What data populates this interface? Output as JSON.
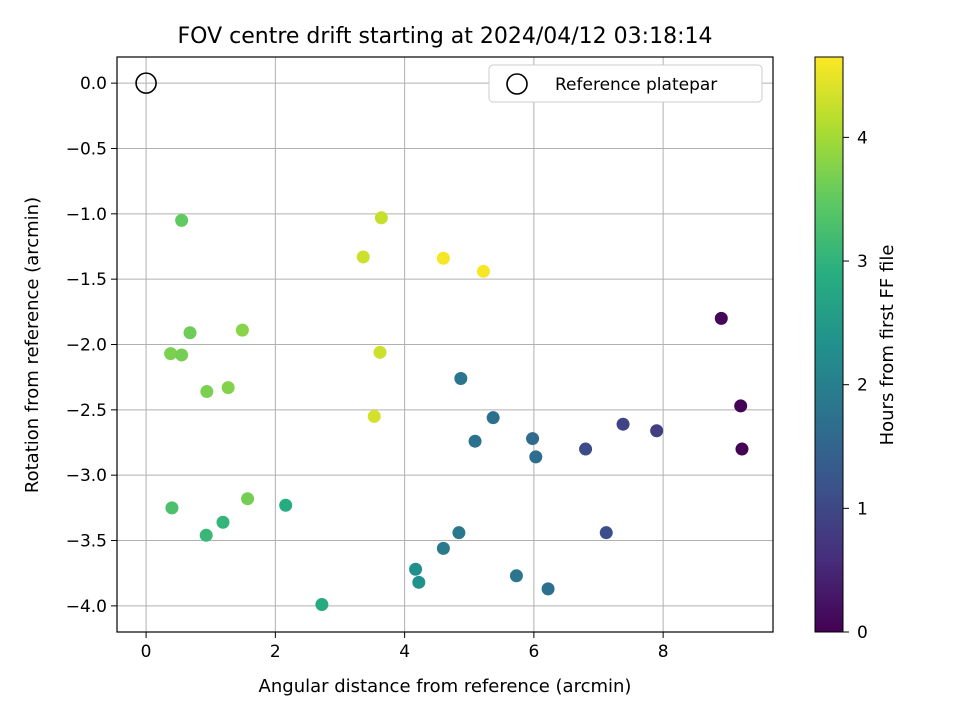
{
  "chart_data": {
    "type": "scatter",
    "title": "FOV centre drift starting at 2024/04/12 03:18:14",
    "xlabel": "Angular distance from reference (arcmin)",
    "ylabel": "Rotation from reference (arcmin)",
    "xlim": [
      -0.45,
      9.7
    ],
    "ylim": [
      -4.2,
      0.2
    ],
    "x_ticks": [
      0,
      2,
      4,
      6,
      8
    ],
    "y_ticks": [
      0.0,
      -0.5,
      -1.0,
      -1.5,
      -2.0,
      -2.5,
      -3.0,
      -3.5,
      -4.0
    ],
    "grid": true,
    "legend": {
      "position": "top-right",
      "entries": [
        "Reference platepar"
      ]
    },
    "reference_point": {
      "x": 0,
      "y": 0
    },
    "colorbar": {
      "label": "Hours from first FF file",
      "colormap": "viridis",
      "range": [
        0,
        4.65
      ],
      "ticks": [
        0,
        1,
        2,
        3,
        4
      ]
    },
    "points": [
      {
        "x": 8.9,
        "y": -1.8,
        "hours": 0.08
      },
      {
        "x": 9.2,
        "y": -2.47,
        "hours": 0.03
      },
      {
        "x": 9.22,
        "y": -2.8,
        "hours": 0.02
      },
      {
        "x": 7.9,
        "y": -2.66,
        "hours": 0.85
      },
      {
        "x": 7.38,
        "y": -2.61,
        "hours": 0.95
      },
      {
        "x": 6.8,
        "y": -2.8,
        "hours": 1.05
      },
      {
        "x": 7.12,
        "y": -3.44,
        "hours": 1.1
      },
      {
        "x": 5.98,
        "y": -2.72,
        "hours": 1.6
      },
      {
        "x": 6.03,
        "y": -2.86,
        "hours": 1.65
      },
      {
        "x": 5.37,
        "y": -2.56,
        "hours": 1.7
      },
      {
        "x": 5.09,
        "y": -2.74,
        "hours": 1.75
      },
      {
        "x": 4.87,
        "y": -2.26,
        "hours": 1.8
      },
      {
        "x": 6.22,
        "y": -3.87,
        "hours": 1.7
      },
      {
        "x": 5.73,
        "y": -3.77,
        "hours": 1.8
      },
      {
        "x": 4.84,
        "y": -3.44,
        "hours": 1.85
      },
      {
        "x": 4.6,
        "y": -3.56,
        "hours": 1.9
      },
      {
        "x": 4.17,
        "y": -3.72,
        "hours": 2.3
      },
      {
        "x": 4.22,
        "y": -3.82,
        "hours": 2.35
      },
      {
        "x": 2.72,
        "y": -3.99,
        "hours": 2.8
      },
      {
        "x": 2.16,
        "y": -3.23,
        "hours": 2.85
      },
      {
        "x": 1.19,
        "y": -3.36,
        "hours": 3.05
      },
      {
        "x": 0.93,
        "y": -3.46,
        "hours": 3.1
      },
      {
        "x": 0.4,
        "y": -3.25,
        "hours": 3.3
      },
      {
        "x": 1.57,
        "y": -3.18,
        "hours": 3.65
      },
      {
        "x": 0.94,
        "y": -2.36,
        "hours": 3.7
      },
      {
        "x": 1.27,
        "y": -2.33,
        "hours": 3.75
      },
      {
        "x": 0.68,
        "y": -1.91,
        "hours": 3.6
      },
      {
        "x": 0.55,
        "y": -1.05,
        "hours": 3.5
      },
      {
        "x": 0.38,
        "y": -2.07,
        "hours": 3.7
      },
      {
        "x": 0.55,
        "y": -2.08,
        "hours": 3.65
      },
      {
        "x": 1.49,
        "y": -1.89,
        "hours": 3.8
      },
      {
        "x": 3.36,
        "y": -1.33,
        "hours": 4.3
      },
      {
        "x": 3.64,
        "y": -1.03,
        "hours": 4.25
      },
      {
        "x": 3.62,
        "y": -2.06,
        "hours": 4.3
      },
      {
        "x": 3.53,
        "y": -2.55,
        "hours": 4.35
      },
      {
        "x": 4.6,
        "y": -1.34,
        "hours": 4.6
      },
      {
        "x": 5.22,
        "y": -1.44,
        "hours": 4.6
      }
    ]
  }
}
